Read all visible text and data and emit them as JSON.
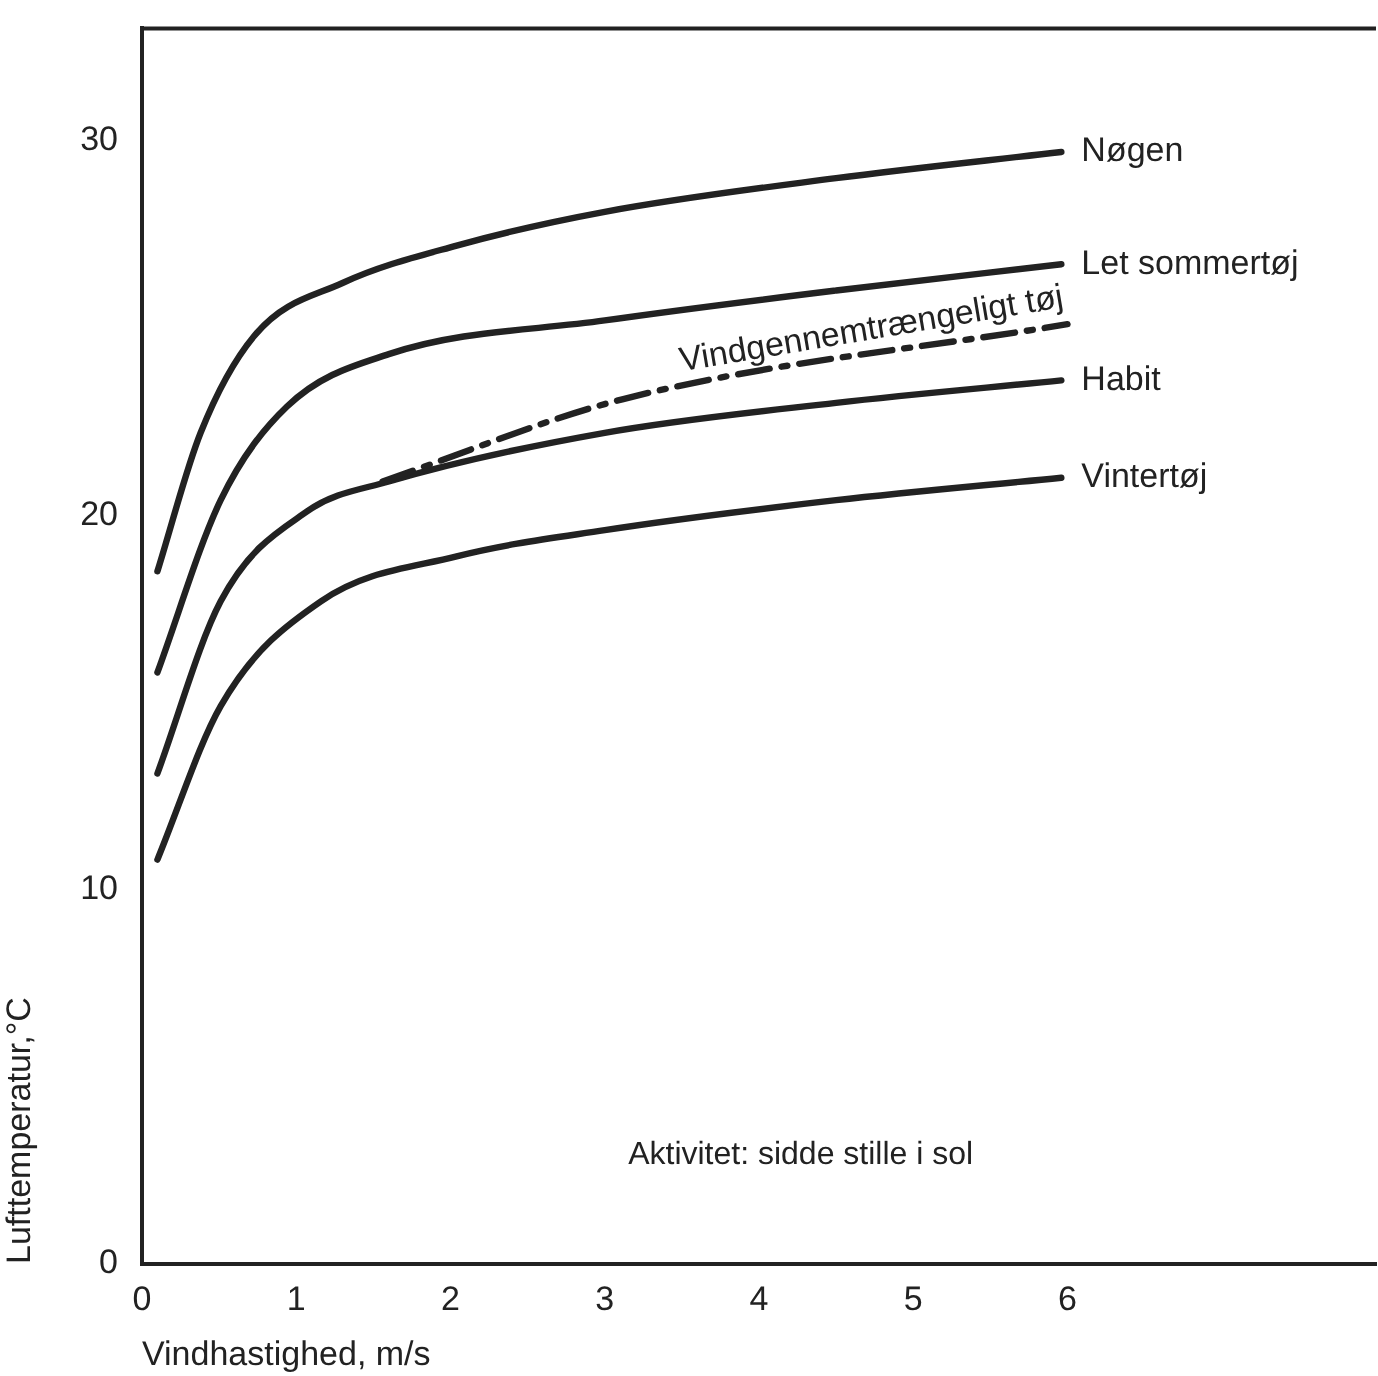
{
  "chart_data": {
    "type": "line",
    "xlabel": "Vindhastighed, m/s",
    "ylabel": "Lufttemperatur,°C",
    "xlim": [
      0,
      8
    ],
    "ylim": [
      0,
      33
    ],
    "xticks": [
      0,
      1,
      2,
      3,
      4,
      5,
      6
    ],
    "yticks": [
      0,
      10,
      20,
      30
    ],
    "grid": false,
    "legend": false,
    "marker": "none",
    "annotations": [
      "Aktivitet: sidde stille i sol"
    ],
    "series": [
      {
        "name": "Nøgen",
        "color": "#222222",
        "line_style": "solid",
        "x": [
          0.1,
          0.38,
          0.73,
          1.3,
          2.04,
          3.0,
          4.5,
          5.96
        ],
        "values": [
          18.5,
          22.2,
          24.8,
          26.2,
          27.2,
          28.1,
          29.0,
          29.7
        ]
      },
      {
        "name": "Let sommertøj",
        "color": "#222222",
        "line_style": "solid",
        "x": [
          0.1,
          0.51,
          0.94,
          1.6,
          3.0,
          4.5,
          5.96
        ],
        "values": [
          15.8,
          20.4,
          22.9,
          24.3,
          25.2,
          26.0,
          26.7
        ]
      },
      {
        "name": "Vindgennemtrængeligt tøj",
        "color": "#222222",
        "line_style": "dashed",
        "x": [
          1.56,
          3.12,
          6.0
        ],
        "values": [
          20.9,
          23.1,
          25.1
        ]
      },
      {
        "name": "Habit",
        "color": "#222222",
        "line_style": "solid",
        "x": [
          0.1,
          0.51,
          1.07,
          1.6,
          3.0,
          4.5,
          5.96
        ],
        "values": [
          13.1,
          17.7,
          20.1,
          20.9,
          22.2,
          23.0,
          23.6
        ]
      },
      {
        "name": "Vintertøj",
        "color": "#222222",
        "line_style": "solid",
        "x": [
          0.1,
          0.51,
          1.16,
          2.04,
          3.0,
          4.5,
          5.96
        ],
        "values": [
          10.8,
          14.9,
          17.7,
          18.9,
          19.6,
          20.4,
          21.0
        ]
      }
    ]
  }
}
